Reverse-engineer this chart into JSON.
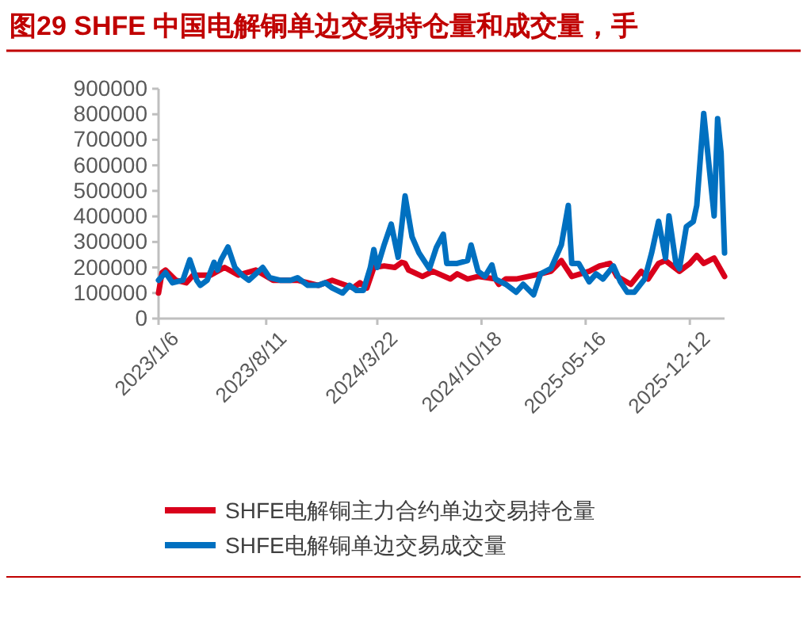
{
  "chart_data": {
    "type": "line",
    "title": "图29  SHFE 中国电解铜单边交易持仓量和成交量，手",
    "ylim": [
      0,
      900000
    ],
    "yticks": [
      0,
      100000,
      200000,
      300000,
      400000,
      500000,
      600000,
      700000,
      800000,
      900000
    ],
    "xlim": [
      "2023-01-06",
      "2026-02-20"
    ],
    "xticks": [
      {
        "value": "2023-01-06",
        "label": "2023/1/6"
      },
      {
        "value": "2023-08-11",
        "label": "2023/8/11"
      },
      {
        "value": "2024-03-22",
        "label": "2024/3/22"
      },
      {
        "value": "2024-10-18",
        "label": "2024/10/18"
      },
      {
        "value": "2025-05-16",
        "label": "2025-05-16"
      },
      {
        "value": "2025-12-12",
        "label": "2025-12-12"
      }
    ],
    "legend": "bottom",
    "grid": false,
    "series": [
      {
        "name": "SHFE电解铜主力合约单边交易持仓量",
        "color": "#d9001b",
        "x": [
          "2023-01-06",
          "2023-01-13",
          "2023-01-20",
          "2023-02-10",
          "2023-03-03",
          "2023-03-17",
          "2023-04-21",
          "2023-05-19",
          "2023-06-16",
          "2023-07-21",
          "2023-08-25",
          "2023-10-13",
          "2023-11-24",
          "2023-12-22",
          "2024-02-02",
          "2024-02-16",
          "2024-03-01",
          "2024-03-15",
          "2024-04-05",
          "2024-04-26",
          "2024-05-10",
          "2024-05-17",
          "2024-05-24",
          "2024-06-21",
          "2024-07-12",
          "2024-08-16",
          "2024-08-30",
          "2024-09-20",
          "2024-10-11",
          "2024-11-15",
          "2024-11-22",
          "2024-12-06",
          "2024-12-27",
          "2025-02-14",
          "2025-03-07",
          "2025-03-28",
          "2025-04-18",
          "2025-05-23",
          "2025-06-13",
          "2025-07-04",
          "2025-07-18",
          "2025-08-15",
          "2025-09-05",
          "2025-09-19",
          "2025-10-10",
          "2025-10-24",
          "2025-11-21",
          "2025-12-12",
          "2025-12-26",
          "2026-01-09",
          "2026-01-30",
          "2026-02-20"
        ],
        "values": [
          100000,
          180000,
          190000,
          150000,
          140000,
          170000,
          170000,
          200000,
          170000,
          190000,
          150000,
          150000,
          130000,
          150000,
          120000,
          140000,
          120000,
          200000,
          206000,
          200000,
          220000,
          216000,
          190000,
          165000,
          185000,
          155000,
          175000,
          155000,
          165000,
          155000,
          134000,
          155000,
          155000,
          175000,
          185000,
          227000,
          165000,
          185000,
          206000,
          216000,
          165000,
          134000,
          185000,
          155000,
          216000,
          227000,
          185000,
          216000,
          247000,
          216000,
          237000,
          165000
        ]
      },
      {
        "name": "SHFE电解铜单边交易成交量",
        "color": "#0070c0",
        "x": [
          "2023-01-06",
          "2023-01-20",
          "2023-02-03",
          "2023-02-24",
          "2023-03-10",
          "2023-03-24",
          "2023-03-31",
          "2023-04-14",
          "2023-04-28",
          "2023-05-05",
          "2023-05-12",
          "2023-05-26",
          "2023-06-09",
          "2023-06-23",
          "2023-07-07",
          "2023-08-04",
          "2023-08-18",
          "2023-09-08",
          "2023-09-29",
          "2023-10-13",
          "2023-11-03",
          "2023-11-24",
          "2023-12-08",
          "2023-12-22",
          "2024-01-12",
          "2024-01-26",
          "2024-02-09",
          "2024-02-23",
          "2024-03-08",
          "2024-03-15",
          "2024-03-22",
          "2024-04-05",
          "2024-04-19",
          "2024-05-03",
          "2024-05-17",
          "2024-05-31",
          "2024-06-14",
          "2024-07-05",
          "2024-07-19",
          "2024-08-02",
          "2024-08-09",
          "2024-08-30",
          "2024-09-20",
          "2024-09-27",
          "2024-10-11",
          "2024-10-25",
          "2024-11-08",
          "2024-11-15",
          "2024-12-06",
          "2024-12-27",
          "2025-01-10",
          "2025-01-31",
          "2025-02-14",
          "2025-03-07",
          "2025-03-28",
          "2025-04-11",
          "2025-04-18",
          "2025-05-02",
          "2025-05-23",
          "2025-06-06",
          "2025-06-20",
          "2025-07-11",
          "2025-07-25",
          "2025-08-08",
          "2025-08-22",
          "2025-09-12",
          "2025-09-26",
          "2025-10-10",
          "2025-10-24",
          "2025-10-31",
          "2025-11-14",
          "2025-11-21",
          "2025-12-05",
          "2025-12-19",
          "2025-12-26",
          "2026-01-09",
          "2026-01-16",
          "2026-01-30",
          "2026-02-06",
          "2026-02-13",
          "2026-02-20"
        ],
        "values": [
          150000,
          180000,
          140000,
          150000,
          230000,
          150000,
          130000,
          150000,
          220000,
          190000,
          230000,
          280000,
          200000,
          170000,
          150000,
          200000,
          160000,
          150000,
          150000,
          160000,
          130000,
          130000,
          140000,
          120000,
          100000,
          130000,
          110000,
          110000,
          200000,
          270000,
          200000,
          290000,
          370000,
          240000,
          480000,
          320000,
          257000,
          195000,
          278000,
          330000,
          216000,
          216000,
          227000,
          288000,
          185000,
          165000,
          210000,
          155000,
          134000,
          103000,
          134000,
          93000,
          175000,
          196000,
          288000,
          443000,
          216000,
          216000,
          144000,
          175000,
          155000,
          206000,
          144000,
          103000,
          103000,
          155000,
          257000,
          381000,
          237000,
          402000,
          216000,
          195000,
          360000,
          380000,
          443000,
          803000,
          670000,
          402000,
          783000,
          649000,
          257000
        ]
      }
    ]
  }
}
